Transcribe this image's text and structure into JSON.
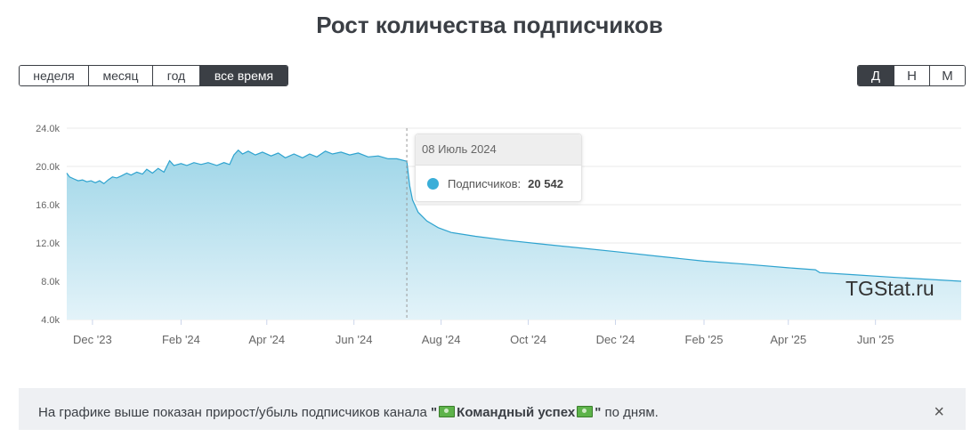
{
  "title": "Рост количества подписчиков",
  "period_buttons": [
    {
      "label": "неделя",
      "active": false
    },
    {
      "label": "месяц",
      "active": false
    },
    {
      "label": "год",
      "active": false
    },
    {
      "label": "все время",
      "active": true
    }
  ],
  "granularity_buttons": [
    {
      "label": "Д",
      "active": true
    },
    {
      "label": "Н",
      "active": false
    },
    {
      "label": "М",
      "active": false
    }
  ],
  "watermark": "TGStat.ru",
  "tooltip": {
    "date": "08 Июль 2024",
    "series_label": "Подписчиков:",
    "value": "20 542"
  },
  "info": {
    "text_before": "На графике выше показан прирост/убыль подписчиков канала ",
    "quote_open": "\"",
    "channel": "Командный успех",
    "quote_close": "\"",
    "text_after": " по дням.",
    "close_icon": "×"
  },
  "colors": {
    "line": "#2ea3cf",
    "fill_top": "#9fd6e8",
    "fill_bottom": "#e3f3f9",
    "button_dark": "#3b3f45"
  },
  "chart_data": {
    "type": "area",
    "y_ticks": [
      "4.0k",
      "8.0k",
      "12.0k",
      "16.0k",
      "20.0k",
      "24.0k"
    ],
    "ylim": [
      4000,
      24000
    ],
    "x_ticks": [
      "Dec '23",
      "Feb '24",
      "Apr '24",
      "Jun '24",
      "Aug '24",
      "Oct '24",
      "Dec '24",
      "Feb '25",
      "Apr '25",
      "Jun '25"
    ],
    "x_tick_dates": [
      "2023-12-01",
      "2024-02-01",
      "2024-04-01",
      "2024-06-01",
      "2024-08-01",
      "2024-10-01",
      "2024-12-01",
      "2025-02-01",
      "2025-04-01",
      "2025-06-01"
    ],
    "xlim": [
      "2023-11-13",
      "2025-07-31"
    ],
    "crosshair_date": "2024-07-08",
    "series": [
      {
        "points": [
          [
            "2023-11-13",
            19300
          ],
          [
            "2023-11-15",
            18900
          ],
          [
            "2023-11-18",
            18700
          ],
          [
            "2023-11-21",
            18500
          ],
          [
            "2023-11-24",
            18600
          ],
          [
            "2023-11-27",
            18400
          ],
          [
            "2023-11-30",
            18500
          ],
          [
            "2023-12-03",
            18300
          ],
          [
            "2023-12-06",
            18500
          ],
          [
            "2023-12-09",
            18200
          ],
          [
            "2023-12-12",
            18600
          ],
          [
            "2023-12-15",
            18900
          ],
          [
            "2023-12-18",
            18800
          ],
          [
            "2023-12-21",
            19000
          ],
          [
            "2023-12-25",
            19300
          ],
          [
            "2023-12-28",
            19100
          ],
          [
            "2024-01-01",
            19400
          ],
          [
            "2024-01-05",
            19200
          ],
          [
            "2024-01-08",
            19700
          ],
          [
            "2024-01-12",
            19300
          ],
          [
            "2024-01-16",
            19800
          ],
          [
            "2024-01-20",
            19400
          ],
          [
            "2024-01-24",
            20600
          ],
          [
            "2024-01-27",
            20100
          ],
          [
            "2024-02-01",
            20300
          ],
          [
            "2024-02-05",
            20100
          ],
          [
            "2024-02-10",
            20400
          ],
          [
            "2024-02-15",
            20200
          ],
          [
            "2024-02-20",
            20400
          ],
          [
            "2024-02-26",
            20100
          ],
          [
            "2024-03-02",
            20400
          ],
          [
            "2024-03-06",
            20200
          ],
          [
            "2024-03-09",
            21200
          ],
          [
            "2024-03-12",
            21700
          ],
          [
            "2024-03-15",
            21300
          ],
          [
            "2024-03-19",
            21600
          ],
          [
            "2024-03-24",
            21200
          ],
          [
            "2024-03-29",
            21500
          ],
          [
            "2024-04-04",
            21100
          ],
          [
            "2024-04-09",
            21400
          ],
          [
            "2024-04-14",
            20900
          ],
          [
            "2024-04-20",
            21300
          ],
          [
            "2024-04-26",
            20900
          ],
          [
            "2024-05-01",
            21300
          ],
          [
            "2024-05-06",
            21000
          ],
          [
            "2024-05-12",
            21600
          ],
          [
            "2024-05-17",
            21300
          ],
          [
            "2024-05-23",
            21500
          ],
          [
            "2024-05-29",
            21200
          ],
          [
            "2024-06-04",
            21400
          ],
          [
            "2024-06-11",
            21000
          ],
          [
            "2024-06-18",
            21100
          ],
          [
            "2024-06-25",
            20800
          ],
          [
            "2024-07-01",
            20800
          ],
          [
            "2024-07-08",
            20542
          ],
          [
            "2024-07-10",
            18000
          ],
          [
            "2024-07-12",
            16500
          ],
          [
            "2024-07-16",
            15200
          ],
          [
            "2024-07-22",
            14300
          ],
          [
            "2024-07-30",
            13600
          ],
          [
            "2024-08-08",
            13100
          ],
          [
            "2024-08-25",
            12700
          ],
          [
            "2024-09-15",
            12300
          ],
          [
            "2024-10-10",
            11900
          ],
          [
            "2024-11-05",
            11500
          ],
          [
            "2024-12-01",
            11100
          ],
          [
            "2025-01-01",
            10600
          ],
          [
            "2025-02-01",
            10100
          ],
          [
            "2025-03-01",
            9800
          ],
          [
            "2025-04-01",
            9400
          ],
          [
            "2025-04-20",
            9200
          ],
          [
            "2025-04-23",
            8900
          ],
          [
            "2025-05-15",
            8700
          ],
          [
            "2025-06-15",
            8400
          ],
          [
            "2025-07-31",
            8000
          ]
        ]
      }
    ]
  }
}
